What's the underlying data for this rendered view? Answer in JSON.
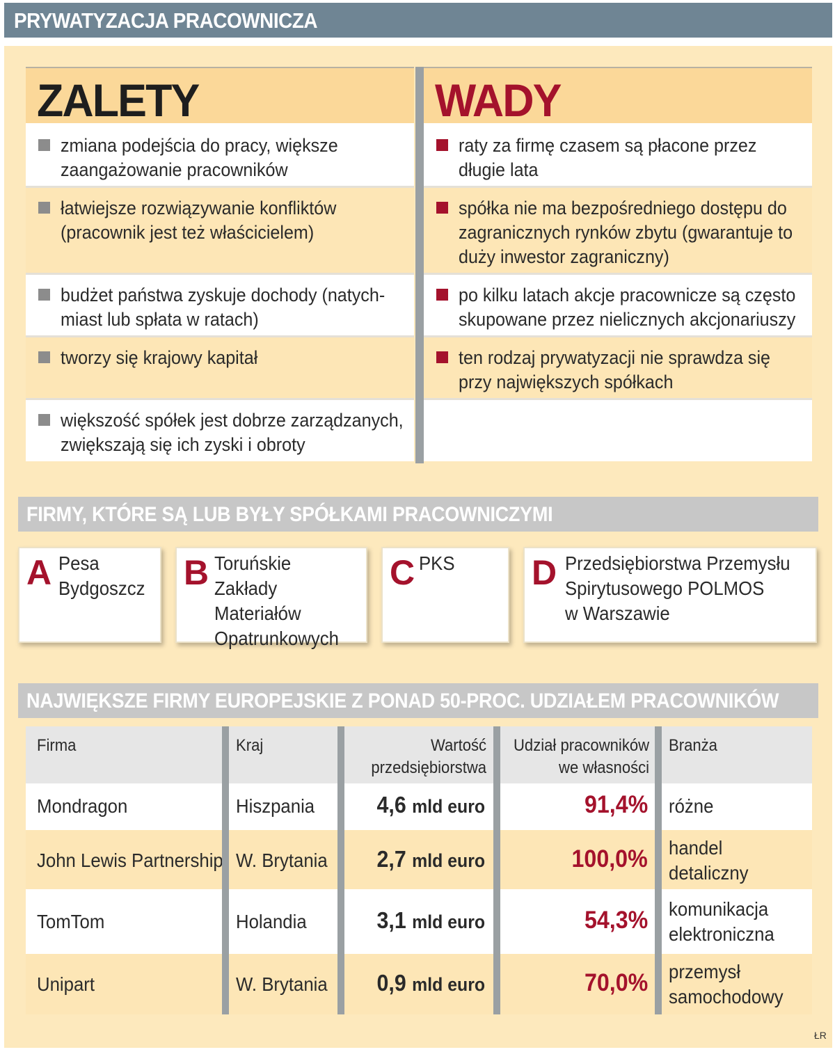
{
  "title": "PRYWATYZACJA PRACOWNICZA",
  "pros_cons": {
    "zalety_header": "ZALETY",
    "wady_header": "WADY",
    "zalety": [
      "zmiana podejścia do pracy, większe zaangażowanie pracowników",
      "łatwiejsze rozwiązywanie konfliktów (pracownik jest też właścicielem)",
      "budżet państwa zyskuje dochody (natych-miast lub spłata w ratach)",
      "tworzy się krajowy kapitał",
      "większość spółek jest dobrze zarządzanych, zwiększają się ich zyski i obroty"
    ],
    "wady": [
      "raty za firmę czasem są płacone przez długie lata",
      "spółka nie ma bezpośredniego dostępu do zagranicznych rynków zbytu (gwarantuje to duży inwestor zagraniczny)",
      "po kilku latach akcje pracownicze są często skupowane przez nielicznych akcjonariuszy",
      "ten rodzaj prywatyzacji nie sprawdza się przy największych spółkach"
    ]
  },
  "firms": {
    "header": "FIRMY, KTÓRE SĄ LUB BYŁY SPÓŁKAMI PRACOWNICZYMI",
    "items": [
      {
        "letter": "A",
        "line1": "Pesa",
        "line2": "Bydgoszcz",
        "line3": ""
      },
      {
        "letter": "B",
        "line1": "Toruńskie Zakłady",
        "line2": "Materiałów",
        "line3": "Opatrunkowych"
      },
      {
        "letter": "C",
        "line1": "PKS",
        "line2": "",
        "line3": ""
      },
      {
        "letter": "D",
        "line1": "Przedsiębiorstwa Przemysłu",
        "line2": "Spirytusowego POLMOS",
        "line3": "w Warszawie"
      }
    ]
  },
  "companies": {
    "header": "NAJWIĘKSZE FIRMY EUROPEJSKIE Z PONAD 50-PROC. UDZIAŁEM PRACOWNIKÓW",
    "columns": {
      "firma": "Firma",
      "kraj": "Kraj",
      "wartosc_1": "Wartość",
      "wartosc_2": "przedsiębiorstwa",
      "udzial_1": "Udział pracowników",
      "udzial_2": "we własności",
      "branza": "Branża"
    },
    "rows": [
      {
        "firma": "Mondragon",
        "kraj": "Hiszpania",
        "wartosc": "4,6",
        "jednostka": "mld euro",
        "udzial": "91,4%",
        "branza_1": "różne",
        "branza_2": ""
      },
      {
        "firma": "John Lewis Partnership",
        "kraj": "W. Brytania",
        "wartosc": "2,7",
        "jednostka": "mld euro",
        "udzial": "100,0%",
        "branza_1": "handel",
        "branza_2": "detaliczny"
      },
      {
        "firma": "TomTom",
        "kraj": "Holandia",
        "wartosc": "3,1",
        "jednostka": "mld euro",
        "udzial": "54,3%",
        "branza_1": "komunikacja",
        "branza_2": "elektroniczna"
      },
      {
        "firma": "Unipart",
        "kraj": "W. Brytania",
        "wartosc": "0,9",
        "jednostka": "mld euro",
        "udzial": "70,0%",
        "branza_1": "przemysł",
        "branza_2": "samochodowy"
      }
    ]
  },
  "credit": "ŁR"
}
